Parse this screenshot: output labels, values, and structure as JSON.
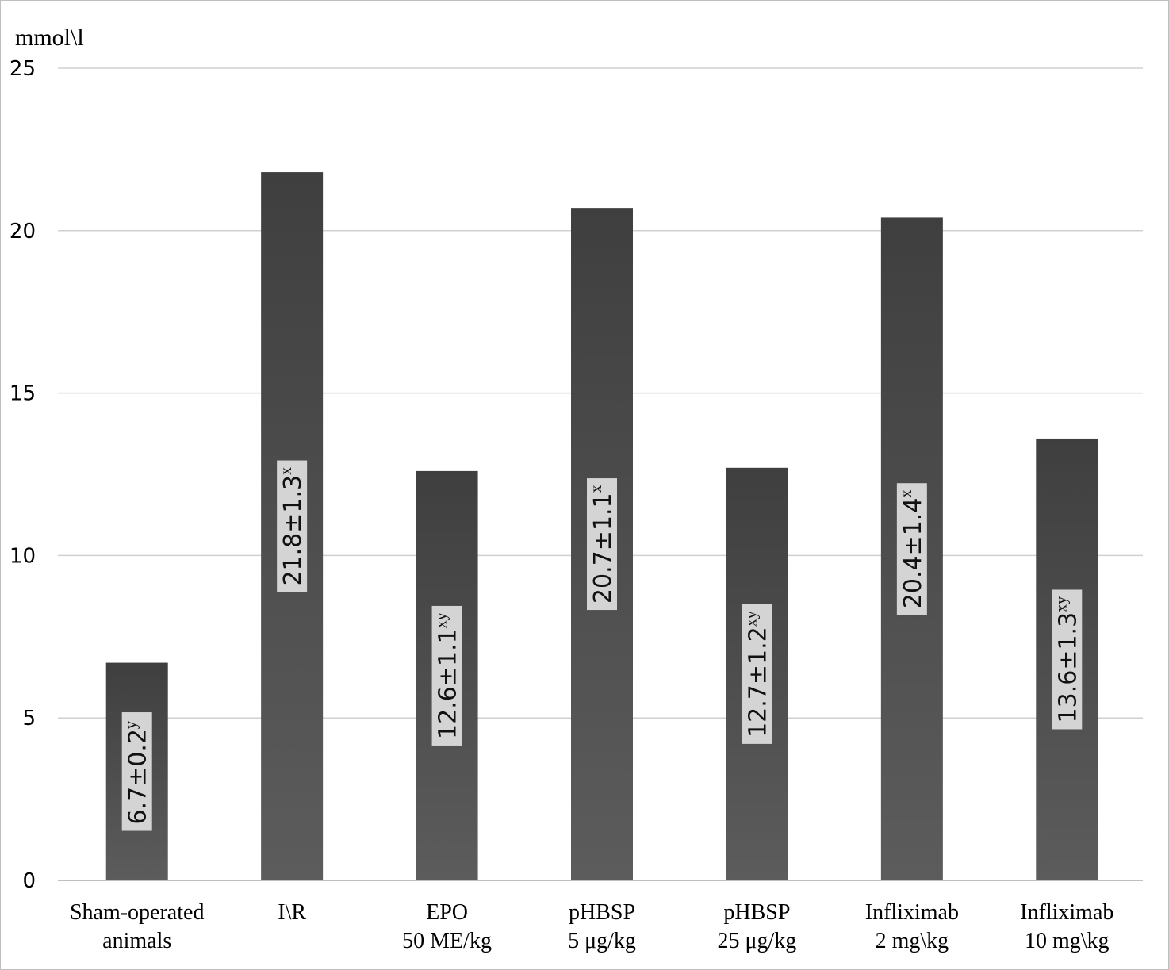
{
  "chart_data": {
    "type": "bar",
    "ylabel": "mmol\\l",
    "ylim": [
      0,
      25
    ],
    "yticks": [
      0,
      5,
      10,
      15,
      20,
      25
    ],
    "grid": true,
    "categories": [
      [
        "Sham-operated",
        "animals"
      ],
      [
        "I\\R"
      ],
      [
        "EPO",
        "50 ME/kg"
      ],
      [
        "pHBSP",
        "5 μg/kg"
      ],
      [
        "pHBSP",
        "25 μg/kg"
      ],
      [
        "Infliximab",
        "2 mg\\kg"
      ],
      [
        "Infliximab",
        "10 mg\\kg"
      ]
    ],
    "values": [
      6.7,
      21.8,
      12.6,
      20.7,
      12.7,
      20.4,
      13.6
    ],
    "data_labels": [
      {
        "text": "6.7±0.2",
        "sup": "y"
      },
      {
        "text": "21.8±1.3",
        "sup": "x"
      },
      {
        "text": "12.6±1.1",
        "sup": "xy"
      },
      {
        "text": "20.7±1.1",
        "sup": "x"
      },
      {
        "text": "12.7±1.2",
        "sup": "xy"
      },
      {
        "text": "20.4±1.4",
        "sup": "x"
      },
      {
        "text": "13.6±1.3",
        "sup": "xy"
      }
    ],
    "colors": {
      "bar_top": "#3f3f3f",
      "bar_bottom": "#5c5c5c",
      "label_bg": "#d4d4d4",
      "grid": "#d0d0d0",
      "axis": "#bfbfbf"
    }
  }
}
